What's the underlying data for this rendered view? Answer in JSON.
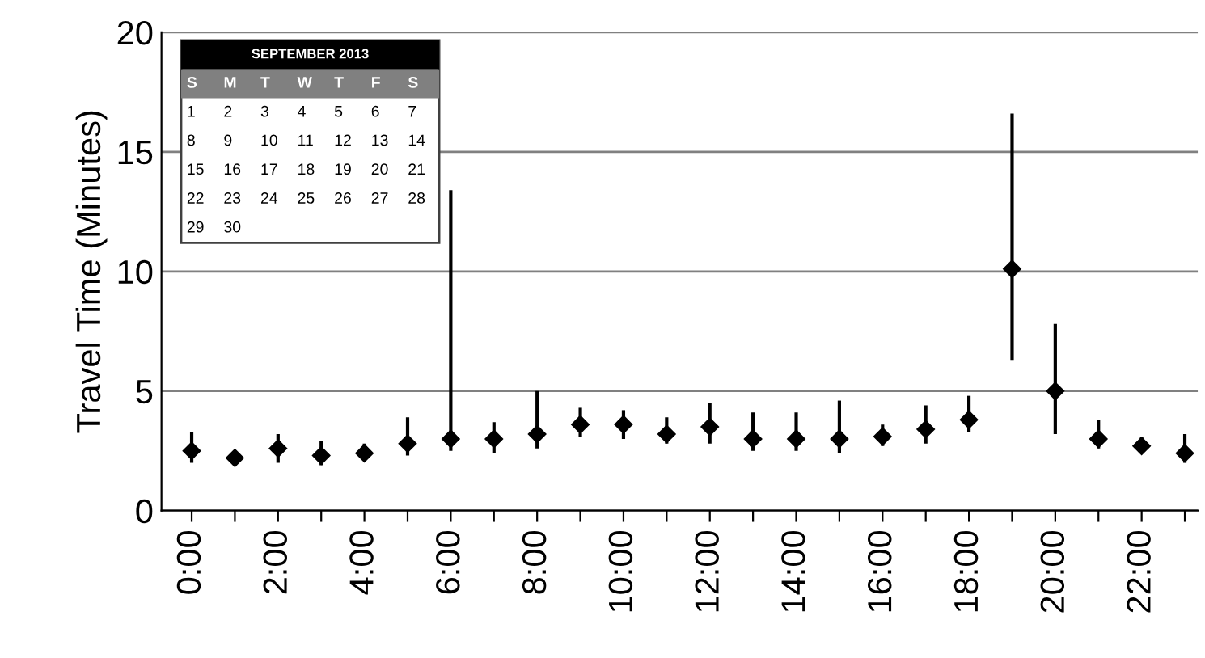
{
  "chart_data": {
    "type": "scatter",
    "ylabel": "Travel Time (Minutes)",
    "categories": [
      "0:00",
      null,
      "2:00",
      null,
      "4:00",
      null,
      "6:00",
      null,
      "8:00",
      null,
      "10:00",
      null,
      "12:00",
      null,
      "14:00",
      null,
      "16:00",
      null,
      "18:00",
      null,
      "20:00",
      null,
      "22:00",
      null
    ],
    "series": [
      {
        "color": "#000000",
        "values": [
          2.5,
          2.2,
          2.6,
          2.3,
          2.4,
          2.8,
          3.0,
          3.0,
          3.2,
          3.6,
          3.6,
          3.2,
          3.5,
          3.0,
          3.0,
          3.0,
          3.1,
          3.4,
          3.8,
          10.1,
          5.0,
          3.0,
          2.7,
          2.4
        ],
        "errors": [
          [
            2.0,
            3.3
          ],
          [
            1.9,
            2.5
          ],
          [
            2.0,
            3.2
          ],
          [
            1.9,
            2.9
          ],
          [
            2.1,
            2.8
          ],
          [
            2.3,
            3.9
          ],
          [
            2.5,
            13.4
          ],
          [
            2.4,
            3.7
          ],
          [
            2.6,
            5.0
          ],
          [
            3.1,
            4.3
          ],
          [
            3.0,
            4.2
          ],
          [
            2.8,
            3.9
          ],
          [
            2.8,
            4.5
          ],
          [
            2.5,
            4.1
          ],
          [
            2.5,
            4.1
          ],
          [
            2.4,
            4.6
          ],
          [
            2.7,
            3.6
          ],
          [
            2.8,
            4.4
          ],
          [
            3.3,
            4.8
          ],
          [
            6.3,
            16.6
          ],
          [
            3.2,
            7.8
          ],
          [
            2.6,
            3.8
          ],
          [
            2.4,
            3.1
          ],
          [
            2.0,
            3.2
          ]
        ]
      }
    ],
    "ylim": [
      0,
      20
    ],
    "yticks": [
      0,
      5,
      10,
      15,
      20
    ],
    "grid": "y",
    "marker": "diamond",
    "annotations": [
      "SEPTEMBER 2013",
      "S M T W T F S",
      "1 2 3 4 5 6 7",
      "8 9 10 11 12 13 14",
      "15 16 17 18 19 20 21",
      "22 23 24 25 26 27 28",
      "29 30"
    ]
  }
}
